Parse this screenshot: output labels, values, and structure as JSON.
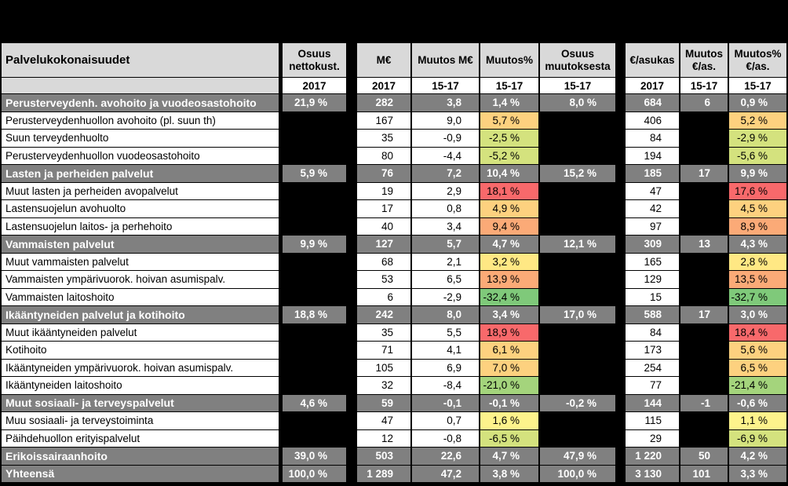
{
  "header": {
    "category": "Palvelukokonaisuudet",
    "share_net_cost": [
      "Osuus",
      "nettokust."
    ],
    "meur": "M€",
    "change_meur": "Muutos M€",
    "change_pct": "Muutos%",
    "share_change": [
      "Osuus",
      "muutoksesta"
    ],
    "eur_per_resident": "€/asukas",
    "change_eur_per_resident": [
      "Muutos",
      "€/as."
    ],
    "change_pct_per_resident": [
      "Muutos%",
      "€/as."
    ]
  },
  "years": {
    "share": "2017",
    "meur": "2017",
    "change_meur": "15-17",
    "change_pct": "15-17",
    "share_change": "15-17",
    "eur_res": "2017",
    "change_eur_res": "15-17",
    "change_pct_res": "15-17"
  },
  "rows": [
    {
      "type": "group",
      "label": "Perusterveydenh. avohoito ja vuodeosastohoito",
      "share": "21,9 %",
      "meur": "282",
      "chg": "3,8",
      "chgpct": "1,4 %",
      "sharechg": "8,0 %",
      "eur": "684",
      "eurchg": "6",
      "eurpct": "0,9 %"
    },
    {
      "type": "item",
      "label": "Perusterveydenhuollon avohoito (pl. suun th)",
      "meur": "167",
      "chg": "9,0",
      "chgpct": "5,7 %",
      "eur": "406",
      "eurpct": "5,2 %",
      "heat": "lorange",
      "heat2": "lorange"
    },
    {
      "type": "item",
      "label": "Suun terveydenhuolto",
      "meur": "35",
      "chg": "-0,9",
      "chgpct": "-2,5 %",
      "eur": "84",
      "eurpct": "-2,9 %",
      "heat": "lgreen",
      "heat2": "lgreen"
    },
    {
      "type": "item",
      "label": "Perusterveydenhuollon vuodeosastohoito",
      "meur": "80",
      "chg": "-4,4",
      "chgpct": "-5,2 %",
      "eur": "194",
      "eurpct": "-5,6 %",
      "heat": "lgreen",
      "heat2": "lgreen"
    },
    {
      "type": "group",
      "label": "Lasten ja perheiden palvelut",
      "share": "5,9 %",
      "meur": "76",
      "chg": "7,2",
      "chgpct": "10,4 %",
      "sharechg": "15,2 %",
      "eur": "185",
      "eurchg": "17",
      "eurpct": "9,9 %"
    },
    {
      "type": "item",
      "label": "Muut lasten ja perheiden avopalvelut",
      "meur": "19",
      "chg": "2,9",
      "chgpct": "18,1 %",
      "eur": "47",
      "eurpct": "17,6 %",
      "heat": "red",
      "heat2": "red"
    },
    {
      "type": "item",
      "label": "Lastensuojelun avohuolto",
      "meur": "17",
      "chg": "0,8",
      "chgpct": "4,9 %",
      "eur": "42",
      "eurpct": "4,5 %",
      "heat": "lorange",
      "heat2": "lorange"
    },
    {
      "type": "item",
      "label": "Lastensuojelun laitos- ja perhehoito",
      "meur": "40",
      "chg": "3,4",
      "chgpct": "9,4 %",
      "eur": "97",
      "eurpct": "8,9 %",
      "heat": "orange",
      "heat2": "orange"
    },
    {
      "type": "group",
      "label": "Vammaisten palvelut",
      "share": "9,9 %",
      "meur": "127",
      "chg": "5,7",
      "chgpct": "4,7 %",
      "sharechg": "12,1 %",
      "eur": "309",
      "eurchg": "13",
      "eurpct": "4,3 %"
    },
    {
      "type": "item",
      "label": "Muut vammaisten palvelut",
      "meur": "68",
      "chg": "2,1",
      "chgpct": "3,2 %",
      "eur": "165",
      "eurpct": "2,8 %",
      "heat": "yellow",
      "heat2": "yellow"
    },
    {
      "type": "item",
      "label": "Vammaisten ympärivuorok. hoivan asumispalv.",
      "meur": "53",
      "chg": "6,5",
      "chgpct": "13,9 %",
      "eur": "129",
      "eurpct": "13,5 %",
      "heat": "orange",
      "heat2": "orange"
    },
    {
      "type": "item",
      "label": "Vammaisten laitoshoito",
      "meur": "6",
      "chg": "-2,9",
      "chgpct": "-32,4 %",
      "eur": "15",
      "eurpct": "-32,7 %",
      "heat": "green",
      "heat2": "green"
    },
    {
      "type": "group",
      "label": "Ikääntyneiden palvelut ja kotihoito",
      "share": "18,8 %",
      "meur": "242",
      "chg": "8,0",
      "chgpct": "3,4 %",
      "sharechg": "17,0 %",
      "eur": "588",
      "eurchg": "17",
      "eurpct": "3,0 %"
    },
    {
      "type": "item",
      "label": "Muut ikääntyneiden palvelut",
      "meur": "35",
      "chg": "5,5",
      "chgpct": "18,9 %",
      "eur": "84",
      "eurpct": "18,4 %",
      "heat": "red",
      "heat2": "red"
    },
    {
      "type": "item",
      "label": "Kotihoito",
      "meur": "71",
      "chg": "4,1",
      "chgpct": "6,1 %",
      "eur": "173",
      "eurpct": "5,6 %",
      "heat": "lorange",
      "heat2": "lorange"
    },
    {
      "type": "item",
      "label": "Ikääntyneiden ympärivuorok. hoivan asumispalv.",
      "meur": "105",
      "chg": "6,9",
      "chgpct": "7,0 %",
      "eur": "254",
      "eurpct": "6,5 %",
      "heat": "lorange",
      "heat2": "lorange"
    },
    {
      "type": "item",
      "label": "Ikääntyneiden laitoshoito",
      "meur": "32",
      "chg": "-8,4",
      "chgpct": "-21,0 %",
      "eur": "77",
      "eurpct": "-21,4 %",
      "heat": "mgreen",
      "heat2": "mgreen"
    },
    {
      "type": "group",
      "label": "Muut sosiaali- ja terveyspalvelut",
      "share": "4,6 %",
      "meur": "59",
      "chg": "-0,1",
      "chgpct": "-0,1 %",
      "sharechg": "-0,2 %",
      "eur": "144",
      "eurchg": "-1",
      "eurpct": "-0,6 %"
    },
    {
      "type": "item",
      "label": "Muu sosiaali- ja terveystoiminta",
      "meur": "47",
      "chg": "0,7",
      "chgpct": "1,6 %",
      "eur": "115",
      "eurpct": "1,1 %",
      "heat": "lyellow",
      "heat2": "lyellow"
    },
    {
      "type": "item",
      "label": "Päihdehuollon erityispalvelut",
      "meur": "12",
      "chg": "-0,8",
      "chgpct": "-6,5 %",
      "eur": "29",
      "eurpct": "-6,9 %",
      "heat": "lgreen",
      "heat2": "lgreen"
    },
    {
      "type": "group",
      "label": "Erikoissairaanhoito",
      "share": "39,0 %",
      "meur": "503",
      "chg": "22,6",
      "chgpct": "4,7 %",
      "sharechg": "47,9 %",
      "eur": "1 220",
      "eurchg": "50",
      "eurpct": "4,2 %"
    },
    {
      "type": "group",
      "label": "Yhteensä",
      "share": "100,0 %",
      "meur": "1 289",
      "chg": "47,2",
      "chgpct": "3,8 %",
      "sharechg": "100,0 %",
      "eur": "3 130",
      "eurchg": "101",
      "eurpct": "3,3 %"
    }
  ]
}
